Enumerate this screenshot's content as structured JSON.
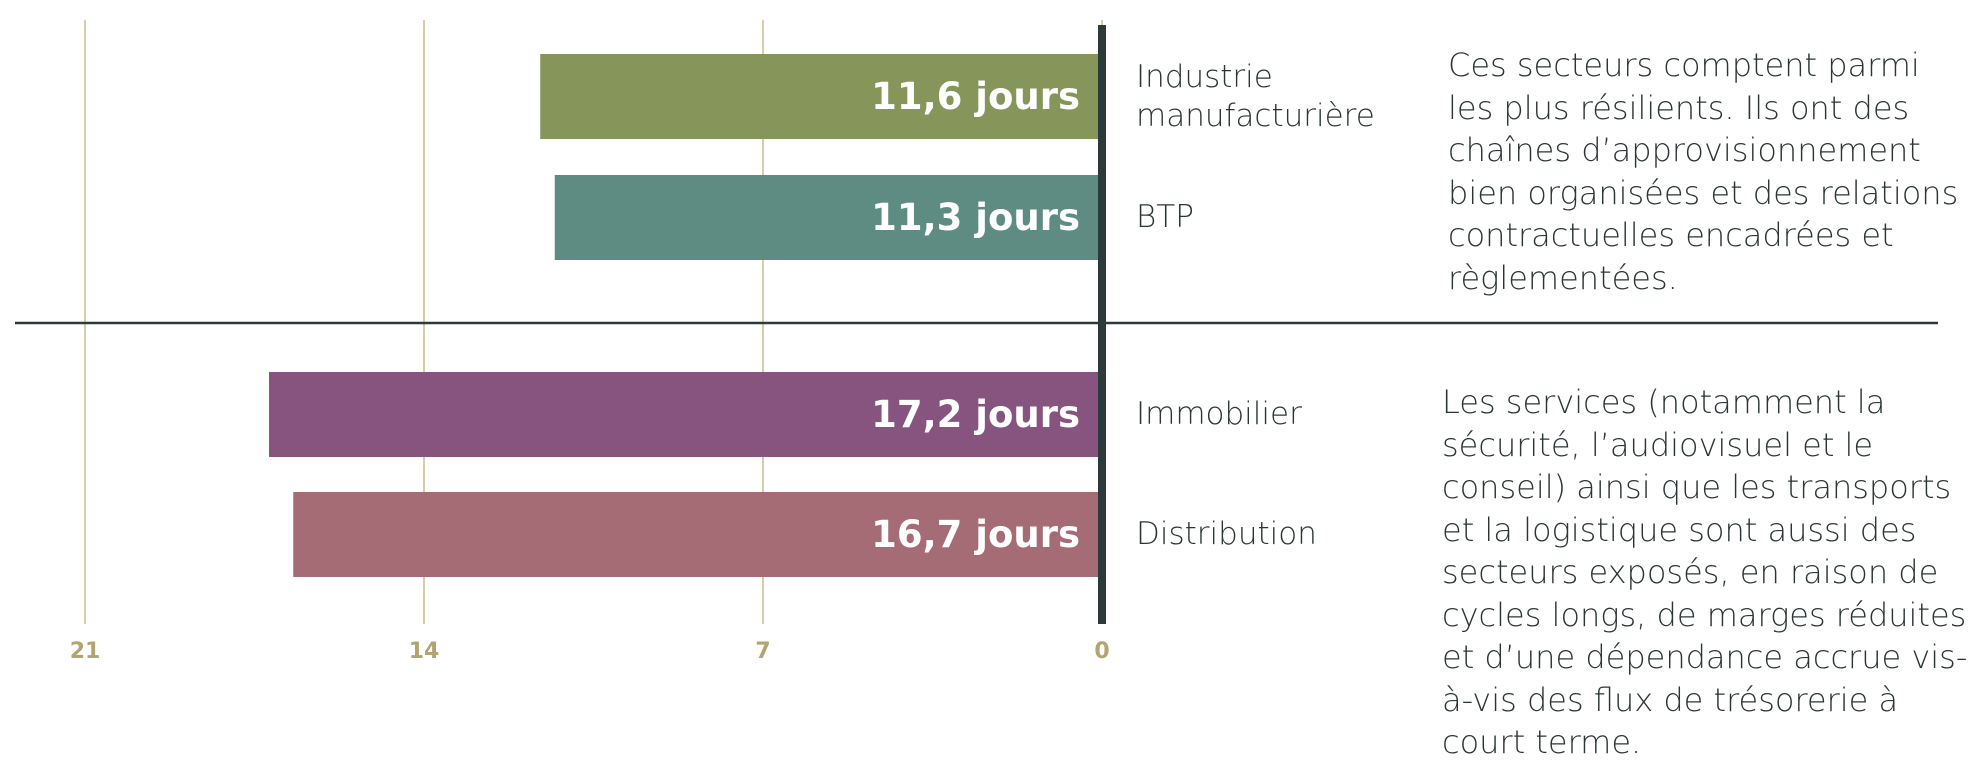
{
  "chart_data": {
    "type": "bar",
    "orientation": "horizontal",
    "categories": [
      "Industrie manufacturière",
      "BTP",
      "Immobilier",
      "Distribution"
    ],
    "values": [
      11.6,
      11.3,
      17.2,
      16.7
    ],
    "value_labels": [
      "11,6 jours",
      "11,3 jours",
      "17,2 jours",
      "16,7 jours"
    ],
    "colors": [
      "#86955a",
      "#5f8c82",
      "#87547f",
      "#a66c75"
    ],
    "xlim": [
      21,
      0
    ],
    "xticks": [
      21,
      14,
      7,
      0
    ],
    "grid": true,
    "annotations": [
      "Ces secteurs comptent parmi les plus résilients. Ils ont des chaînes d’approvisionnement bien organisées et des relations contractuelles encadrées et règlementées.",
      "Les services (notamment la sécurité, l’audiovisuel et le conseil) ainsi que les transports et la logistique sont aussi des secteurs exposés, en raison de cycles longs, de marges réduites et d’une dépendance accrue vis-à-vis des flux de trésorerie à court terme."
    ]
  }
}
